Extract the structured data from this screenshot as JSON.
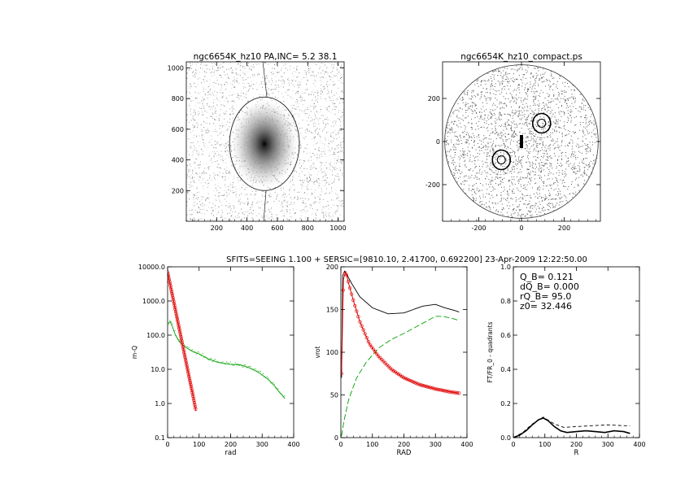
{
  "page": {
    "suptitle": "SFITS=SEEING 1.100 + SERSIC=[9810.10, 2.41700, 0.692200]  23-Apr-2009 12:22:50.00"
  },
  "colors": {
    "axis": "#000000",
    "green": "#00a000",
    "red": "#e00000",
    "dark": "#000000"
  },
  "chart_data": [
    {
      "id": "image-panel",
      "type": "heatmap",
      "title": "ngc6654K_hz10 PA,INC=  5.2 38.1",
      "xlim": [
        0,
        1040
      ],
      "ylim": [
        0,
        1040
      ],
      "xticks": [
        200,
        400,
        600,
        800,
        1000
      ],
      "yticks": [
        200,
        400,
        600,
        800,
        1000
      ],
      "galaxy_center": [
        515,
        505
      ],
      "ellipse_semi_axes": [
        230,
        305
      ]
    },
    {
      "id": "compact-panel",
      "type": "scatter",
      "title": "ngc6654K_hz10_compact.ps",
      "xlim": [
        -370,
        370
      ],
      "ylim": [
        -370,
        370
      ],
      "xticks": [
        -200,
        0,
        200
      ],
      "yticks": [
        -200,
        0,
        200
      ],
      "circle_radius": 360
    },
    {
      "id": "mass-profile",
      "type": "line",
      "xlabel": "rad",
      "ylabel": "m-Q",
      "log_y": true,
      "xlim": [
        0,
        400
      ],
      "ylim": [
        0.1,
        10000
      ],
      "xticks": [
        0,
        100,
        200,
        300,
        400
      ],
      "yticks": [
        0.1,
        1.0,
        10.0,
        100.0,
        1000.0,
        10000.0
      ],
      "yticklabels": [
        "0.1",
        "1.0",
        "10.0",
        "100.0",
        "1000.0",
        "10000.0"
      ],
      "series": [
        {
          "color": "green",
          "x": [
            2,
            8,
            15,
            25,
            40,
            60,
            80,
            100,
            130,
            160,
            200,
            230,
            260,
            290,
            320,
            340,
            355,
            365,
            372
          ],
          "y": [
            220,
            250,
            180,
            100,
            60,
            42,
            33,
            28,
            20,
            16,
            14,
            13.5,
            11,
            8,
            5,
            3.2,
            2.1,
            1.7,
            1.4
          ]
        },
        {
          "color": "red",
          "x": [
            0,
            10,
            20,
            30,
            40,
            50,
            60,
            70,
            80,
            90
          ],
          "y": [
            7000,
            2500,
            900,
            320,
            115,
            40,
            14,
            5,
            1.8,
            0.6
          ]
        }
      ]
    },
    {
      "id": "rotation-curve",
      "type": "line",
      "xlabel": "RAD",
      "ylabel": "vrot",
      "xlim": [
        0,
        400
      ],
      "ylim": [
        0,
        200
      ],
      "xticks": [
        0,
        100,
        200,
        300,
        400
      ],
      "yticks": [
        0,
        50,
        100,
        150,
        200
      ],
      "series": [
        {
          "color": "dark",
          "x": [
            2,
            6,
            12,
            20,
            35,
            60,
            100,
            150,
            200,
            230,
            260,
            300,
            330,
            360,
            375
          ],
          "y": [
            70,
            190,
            195,
            190,
            180,
            165,
            152,
            145,
            146,
            150,
            154,
            156,
            152,
            149,
            147
          ]
        },
        {
          "color": "green",
          "x": [
            2,
            10,
            25,
            50,
            80,
            120,
            160,
            200,
            240,
            280,
            300,
            320,
            350,
            375
          ],
          "y": [
            2,
            20,
            45,
            70,
            88,
            105,
            115,
            122,
            130,
            138,
            142,
            142,
            140,
            137
          ]
        },
        {
          "color": "red",
          "x": [
            2,
            8,
            15,
            25,
            40,
            60,
            90,
            120,
            160,
            200,
            250,
            300,
            340,
            375
          ],
          "y": [
            75,
            185,
            195,
            180,
            160,
            136,
            110,
            95,
            80,
            70,
            62,
            57,
            54,
            52
          ]
        }
      ]
    },
    {
      "id": "quadrant-panel",
      "type": "line",
      "xlabel": "R",
      "ylabel": "FT/FR_0 - quadrants",
      "xlim": [
        0,
        400
      ],
      "ylim": [
        0,
        1.0
      ],
      "xticks": [
        0,
        100,
        200,
        300,
        400
      ],
      "yticks": [
        0.0,
        0.2,
        0.4,
        0.6,
        0.8,
        1.0
      ],
      "yticklabels": [
        "0.0",
        "0.2",
        "0.4",
        "0.6",
        "0.8",
        "1.0"
      ],
      "annotations": [
        "Q_B=  0.121",
        "dQ_B=  0.000",
        "rQ_B=   95.0",
        "z0= 32.446"
      ],
      "series": [
        {
          "color": "dark",
          "style": "solid",
          "x": [
            0,
            20,
            40,
            60,
            80,
            95,
            110,
            130,
            150,
            170,
            200,
            230,
            260,
            290,
            320,
            350,
            370
          ],
          "y": [
            0.0,
            0.015,
            0.04,
            0.075,
            0.105,
            0.115,
            0.1,
            0.065,
            0.04,
            0.03,
            0.035,
            0.04,
            0.035,
            0.03,
            0.04,
            0.035,
            0.025
          ]
        },
        {
          "color": "dark",
          "style": "dashed",
          "x": [
            0,
            30,
            60,
            95,
            130,
            160,
            200,
            250,
            300,
            350,
            370
          ],
          "y": [
            0.0,
            0.03,
            0.08,
            0.12,
            0.08,
            0.06,
            0.065,
            0.07,
            0.075,
            0.07,
            0.07
          ]
        }
      ]
    }
  ]
}
